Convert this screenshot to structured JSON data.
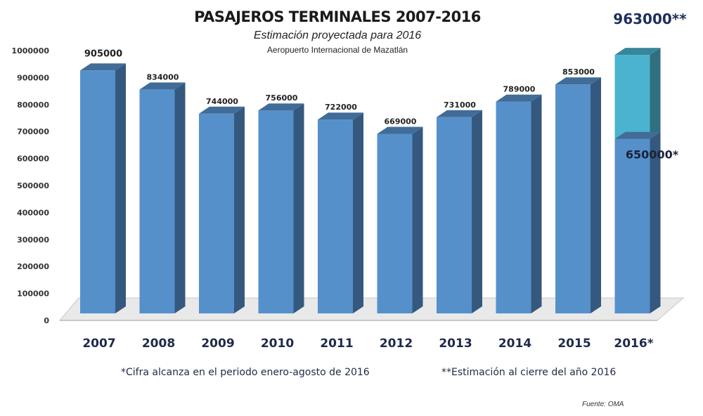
{
  "chart_data": {
    "type": "bar",
    "title": "PASAJEROS TERMINALES 2007-2016",
    "subtitle": "Estimación proyectada para 2016",
    "subtitle2": "Aeropuerto Internacional de Mazatlán",
    "categories": [
      "2007",
      "2008",
      "2009",
      "2010",
      "2011",
      "2012",
      "2013",
      "2014",
      "2015",
      "2016*"
    ],
    "values": [
      905000,
      834000,
      744000,
      756000,
      722000,
      669000,
      731000,
      789000,
      853000,
      650000
    ],
    "data_labels": [
      "905000",
      "834000",
      "744000",
      "756000",
      "722000",
      "669000",
      "731000",
      "789000",
      "853000",
      "650000*"
    ],
    "projection": {
      "category": "2016*",
      "value": 963000,
      "label": "963000**",
      "color": "#4bb3cf"
    },
    "bar_color": "#5690cb",
    "ylim": [
      0,
      1000000
    ],
    "yticks": [
      "0",
      "100000",
      "200000",
      "300000",
      "400000",
      "500000",
      "600000",
      "700000",
      "800000",
      "900000",
      "1000000"
    ],
    "grid": false,
    "style": "3d-column",
    "xlabel": "",
    "ylabel": ""
  },
  "notes": {
    "note1": "*Cifra alcanza en el periodo enero-agosto de 2016",
    "note2": "**Estimación al cierre del año 2016",
    "source": "Fuente: OMA"
  }
}
